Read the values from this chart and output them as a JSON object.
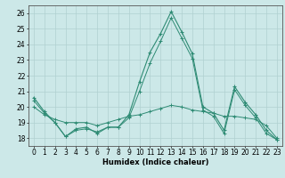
{
  "title": "",
  "xlabel": "Humidex (Indice chaleur)",
  "background_color": "#cce8e8",
  "line_color": "#2e8b74",
  "grid_color": "#b0d0d0",
  "xlim": [
    -0.5,
    23.5
  ],
  "ylim": [
    17.5,
    26.5
  ],
  "yticks": [
    18,
    19,
    20,
    21,
    22,
    23,
    24,
    25,
    26
  ],
  "xticks": [
    0,
    1,
    2,
    3,
    4,
    5,
    6,
    7,
    8,
    9,
    10,
    11,
    12,
    13,
    14,
    15,
    16,
    17,
    18,
    19,
    20,
    21,
    22,
    23
  ],
  "series1": [
    20.6,
    19.7,
    19.0,
    18.1,
    18.6,
    18.7,
    18.3,
    18.7,
    18.7,
    19.5,
    21.6,
    23.5,
    24.7,
    26.1,
    24.8,
    23.4,
    20.0,
    19.6,
    18.5,
    21.3,
    20.3,
    19.5,
    18.5,
    17.9
  ],
  "series2": [
    20.0,
    19.5,
    19.2,
    19.0,
    19.0,
    19.0,
    18.8,
    19.0,
    19.2,
    19.4,
    19.5,
    19.7,
    19.9,
    20.1,
    20.0,
    19.8,
    19.7,
    19.6,
    19.4,
    19.4,
    19.3,
    19.2,
    18.8,
    18.0
  ],
  "series3": [
    20.4,
    19.6,
    19.0,
    18.1,
    18.5,
    18.6,
    18.4,
    18.7,
    18.7,
    19.3,
    21.0,
    22.8,
    24.2,
    25.7,
    24.4,
    23.1,
    19.8,
    19.4,
    18.3,
    21.1,
    20.1,
    19.3,
    18.3,
    17.9
  ],
  "tick_fontsize": 5.5,
  "xlabel_fontsize": 6.0
}
